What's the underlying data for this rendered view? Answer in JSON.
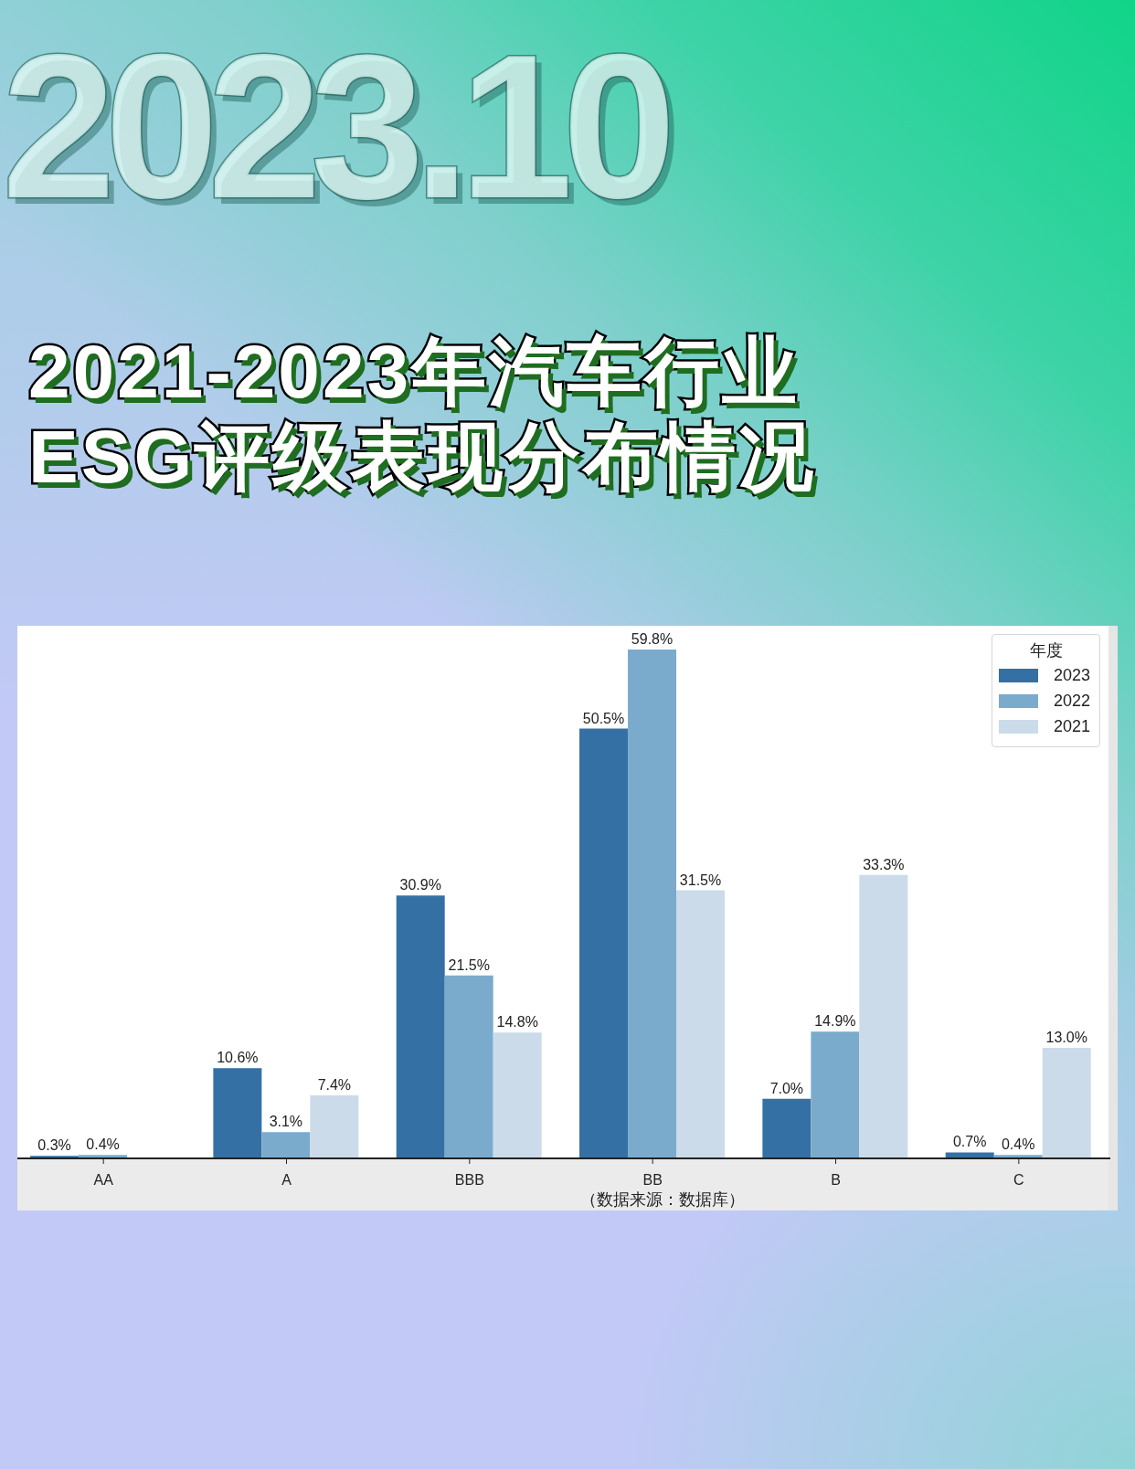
{
  "chart_data": {
    "type": "bar",
    "title": "2021-2023年汽车行业ESG评级表现分布情况",
    "legend_title": "年度",
    "categories": [
      "AA",
      "A",
      "BBB",
      "BB",
      "B",
      "C"
    ],
    "series": [
      {
        "name": "2023",
        "color": "#3570a5",
        "values": [
          0.3,
          10.6,
          30.9,
          50.5,
          7.0,
          0.7
        ],
        "value_labels": [
          "0.3%",
          "10.6%",
          "30.9%",
          "50.5%",
          "7.0%",
          "0.7%"
        ]
      },
      {
        "name": "2022",
        "color": "#7aabcd",
        "values": [
          0.4,
          3.1,
          21.5,
          59.8,
          14.9,
          0.4
        ],
        "value_labels": [
          "0.4%",
          "3.1%",
          "21.5%",
          "59.8%",
          "14.9%",
          "0.4%"
        ]
      },
      {
        "name": "2021",
        "color": "#cbdbea",
        "values": [
          null,
          7.4,
          14.8,
          31.5,
          33.3,
          13.0
        ],
        "value_labels": [
          null,
          "7.4%",
          "14.8%",
          "31.5%",
          "33.3%",
          "13.0%"
        ]
      }
    ],
    "legend": "top right",
    "tick_labels": "x",
    "annotations": [
      "2023.10",
      "（数据来源：数据库）"
    ]
  }
}
